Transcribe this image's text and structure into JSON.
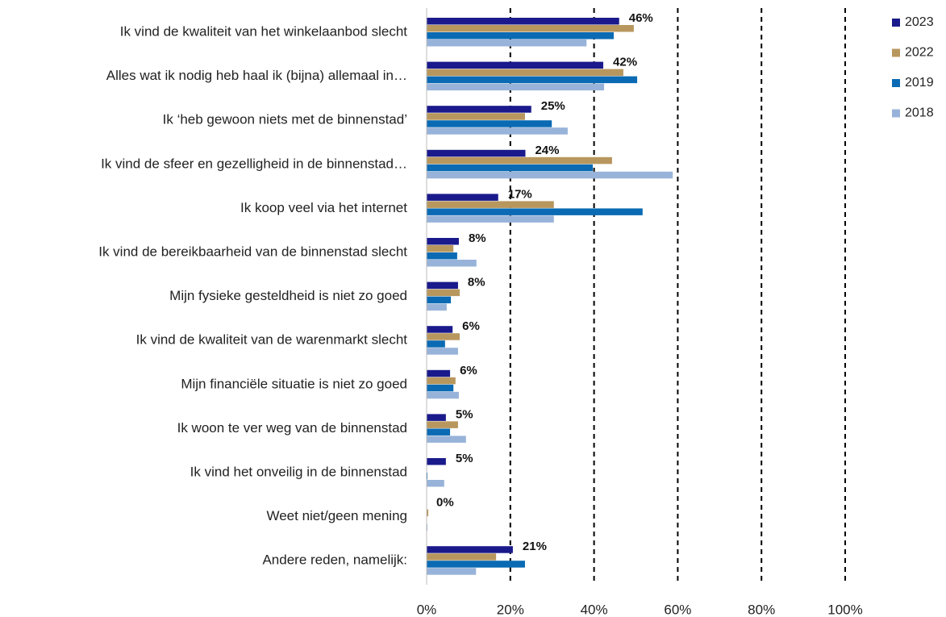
{
  "chart_data": {
    "type": "bar",
    "orientation": "horizontal",
    "categories": [
      "Ik vind de kwaliteit van het winkelaanbod slecht",
      "Alles wat ik nodig heb haal ik (bijna) allemaal in…",
      "Ik ‘heb gewoon niets met de binnenstad’",
      "Ik vind de sfeer en gezelligheid in de binnenstad…",
      "Ik koop veel via het internet",
      "Ik vind de bereikbaarheid van de binnenstad slecht",
      "Mijn fysieke gesteldheid is niet zo goed",
      "Ik vind de kwaliteit van de warenmarkt slecht",
      "Mijn financiële situatie is niet zo goed",
      "Ik woon te ver weg van de binnenstad",
      "Ik vind het onveilig in de binnenstad",
      "Weet niet/geen mening",
      "Andere reden, namelijk:"
    ],
    "series": [
      {
        "name": "2023",
        "color": "#1a1a8c",
        "values": [
          46,
          42.2,
          25,
          23.6,
          17.1,
          7.7,
          7.5,
          6.2,
          5.6,
          4.6,
          4.6,
          0,
          20.6
        ],
        "value_labels": [
          "46%",
          "42%",
          "25%",
          "24%",
          "17%",
          "8%",
          "8%",
          "6%",
          "6%",
          "5%",
          "5%",
          "0%",
          "21%"
        ]
      },
      {
        "name": "2022",
        "color": "#b8975e",
        "values": [
          49.5,
          47,
          23.5,
          44.3,
          30.4,
          6.4,
          7.9,
          7.9,
          6.9,
          7.5,
          0,
          0.4,
          16.6
        ]
      },
      {
        "name": "2019",
        "color": "#0a6ab3",
        "values": [
          44.7,
          50.3,
          29.9,
          39.7,
          51.6,
          7.3,
          5.8,
          4.4,
          6.4,
          5.6,
          0.2,
          0,
          23.5
        ]
      },
      {
        "name": "2018",
        "color": "#98b3d9",
        "values": [
          38.2,
          42.4,
          33.7,
          58.8,
          30.4,
          11.9,
          4.8,
          7.5,
          7.7,
          9.4,
          4.2,
          0.2,
          11.8
        ]
      }
    ],
    "xlim": [
      0,
      100
    ],
    "xticks": [
      {
        "value": 0,
        "label": "0%"
      },
      {
        "value": 20,
        "label": "20%"
      },
      {
        "value": 40,
        "label": "40%"
      },
      {
        "value": 60,
        "label": "60%"
      },
      {
        "value": 80,
        "label": "80%"
      },
      {
        "value": 100,
        "label": "100%"
      }
    ],
    "grid": true,
    "legend": "right"
  }
}
